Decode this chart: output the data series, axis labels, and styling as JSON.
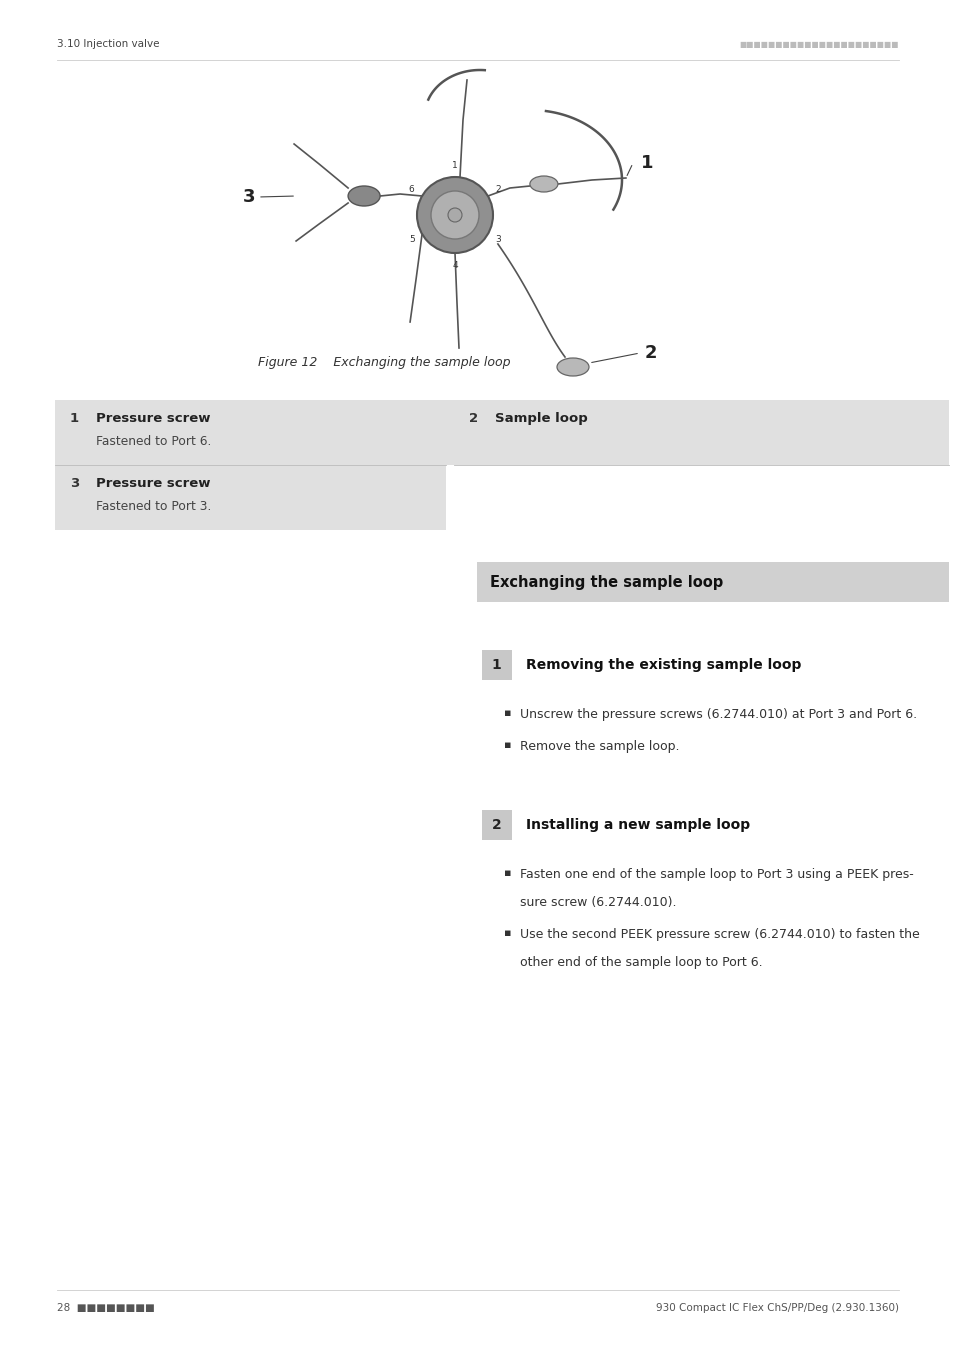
{
  "page_width": 9.54,
  "page_height": 13.5,
  "dpi": 100,
  "background_color": "#ffffff",
  "header_text_left": "3.10 Injection valve",
  "header_dots": "■■■■■■■■■■■■■■■■■■■■■■",
  "header_dots_color": "#bbbbbb",
  "figure_caption": "Figure 12    Exchanging the sample loop",
  "table_items": [
    {
      "num": "1",
      "bold": "Pressure screw",
      "sub": "Fastened to Port 6.",
      "row": 0,
      "col": 0
    },
    {
      "num": "2",
      "bold": "Sample loop",
      "sub": "",
      "row": 0,
      "col": 1
    },
    {
      "num": "3",
      "bold": "Pressure screw",
      "sub": "Fastened to Port 3.",
      "row": 1,
      "col": 0
    }
  ],
  "table_bg": "#e0e0e0",
  "section_header": "Exchanging the sample loop",
  "section_header_bg": "#d0d0d0",
  "step1_num": "1",
  "step1_title": "Removing the existing sample loop",
  "step1_num_bg": "#c8c8c8",
  "step1_bullets": [
    "Unscrew the pressure screws (6.2744.010) at Port 3 and Port 6.",
    "Remove the sample loop."
  ],
  "step2_num": "2",
  "step2_title": "Installing a new sample loop",
  "step2_num_bg": "#c8c8c8",
  "step2_bullet1_line1": "Fasten one end of the sample loop to Port 3 using a PEEK pres-",
  "step2_bullet1_line2": "sure screw (6.2744.010).",
  "step2_bullet2_line1": "Use the second PEEK pressure screw (6.2744.010) to fasten the",
  "step2_bullet2_line2": "other end of the sample loop to Port 6.",
  "footer_page": "28",
  "footer_dots": "■■■■■■■■",
  "footer_dots_color": "#888888",
  "footer_right": "930 Compact IC Flex ChS/PP/Deg (2.930.1360)"
}
